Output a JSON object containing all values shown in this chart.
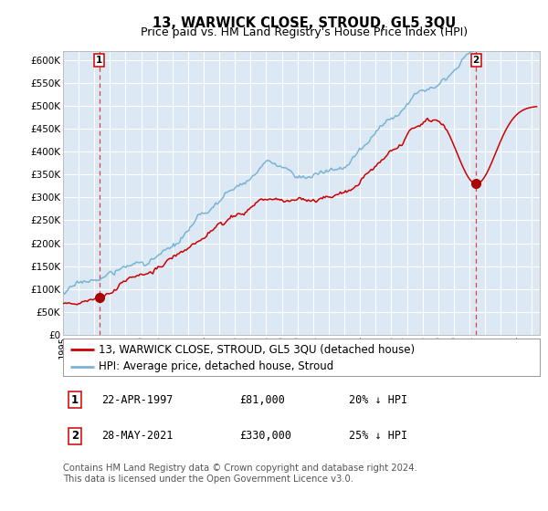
{
  "title": "13, WARWICK CLOSE, STROUD, GL5 3QU",
  "subtitle": "Price paid vs. HM Land Registry's House Price Index (HPI)",
  "ylim": [
    0,
    620000
  ],
  "yticks": [
    0,
    50000,
    100000,
    150000,
    200000,
    250000,
    300000,
    350000,
    400000,
    450000,
    500000,
    550000,
    600000
  ],
  "ytick_labels": [
    "£0",
    "£50K",
    "£100K",
    "£150K",
    "£200K",
    "£250K",
    "£300K",
    "£350K",
    "£400K",
    "£450K",
    "£500K",
    "£550K",
    "£600K"
  ],
  "xlim_start": 1995.0,
  "xlim_end": 2025.5,
  "fig_bg_color": "#ffffff",
  "plot_bg_color": "#dce9f5",
  "grid_color": "#ffffff",
  "hpi_line_color": "#7ab3d4",
  "price_line_color": "#cc0000",
  "marker_color": "#aa0000",
  "dashed_line_color": "#dd2222",
  "sale1_x": 1997.31,
  "sale1_y": 81000,
  "sale2_x": 2021.41,
  "sale2_y": 330000,
  "legend_label1": "13, WARWICK CLOSE, STROUD, GL5 3QU (detached house)",
  "legend_label2": "HPI: Average price, detached house, Stroud",
  "table_row1": [
    "1",
    "22-APR-1997",
    "£81,000",
    "20% ↓ HPI"
  ],
  "table_row2": [
    "2",
    "28-MAY-2021",
    "£330,000",
    "25% ↓ HPI"
  ],
  "footer_text": "Contains HM Land Registry data © Crown copyright and database right 2024.\nThis data is licensed under the Open Government Licence v3.0.",
  "title_fontsize": 10.5,
  "subtitle_fontsize": 9,
  "tick_fontsize": 7.5,
  "legend_fontsize": 8.5,
  "table_fontsize": 8.5,
  "footer_fontsize": 7.2
}
